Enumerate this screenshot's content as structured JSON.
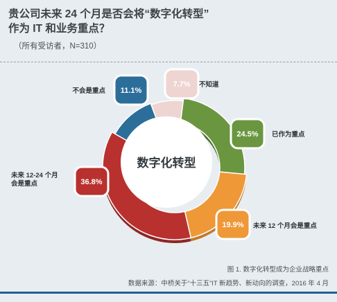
{
  "header": {
    "title_line1": "贵公司未来 24 个月是否会将“数字化转型”",
    "title_line2": "作为 IT 和业务重点？",
    "subtitle": "（所有受访者，N=310）"
  },
  "chart_data": {
    "type": "pie",
    "center_label": "数字化转型",
    "unit": "%",
    "slices": [
      {
        "label": "已作为重点",
        "value": 24.5,
        "value_label": "24.5%",
        "color": "#6a9640"
      },
      {
        "label": "未来 12 个月会是重点",
        "value": 19.9,
        "value_label": "19.9%",
        "color": "#ee9837"
      },
      {
        "label": "未来 12-24 个月会是重点",
        "label_lines": [
          "未来 12-24 个月",
          "会是重点"
        ],
        "value": 36.8,
        "value_label": "36.8%",
        "color": "#b8312f"
      },
      {
        "label": "不会是重点",
        "value": 11.1,
        "value_label": "11.1%",
        "color": "#2c6e9a"
      },
      {
        "label": "不知道",
        "value": 7.7,
        "value_label": "7.7%",
        "color": "#eed5d2"
      }
    ]
  },
  "footer": {
    "figure_caption": "图 1. 数字化转型成为企业战略重点",
    "source": "数据来源：中桥关于“十三五”IT 新趋势、新动向的调查，2016 年 4 月"
  }
}
